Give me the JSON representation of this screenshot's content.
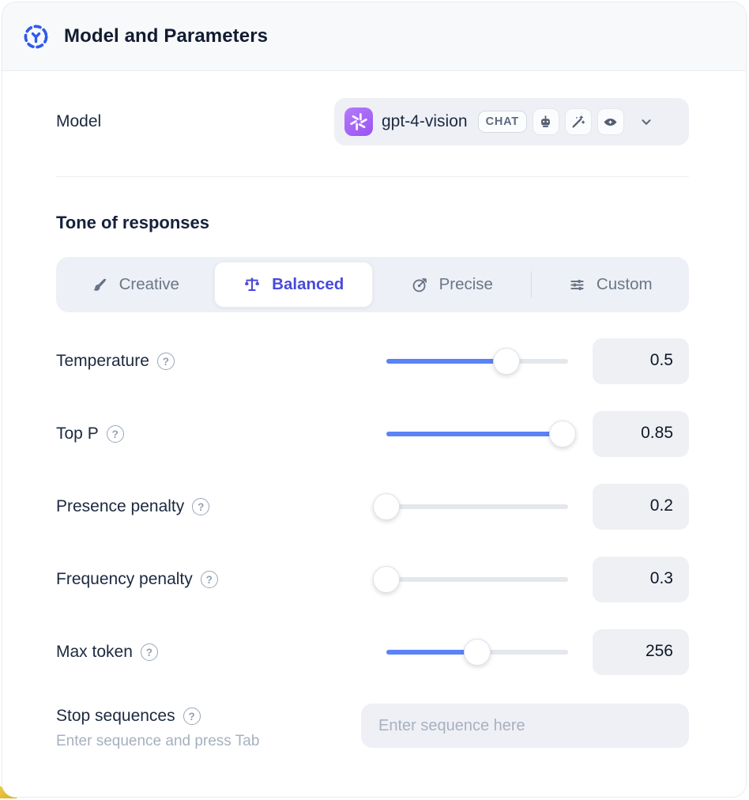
{
  "header": {
    "title": "Model and Parameters",
    "icon": "model-hub-icon"
  },
  "model_row": {
    "label": "Model",
    "selected_model": "gpt-4-vision",
    "provider_icon": "openai-logo",
    "type_badge": "CHAT",
    "capability_badges": [
      "assistant-robot-icon",
      "magic-wand-icon",
      "vision-eye-icon"
    ],
    "dropdown_icon": "chevron-down-icon"
  },
  "tone": {
    "heading": "Tone of responses",
    "tabs": [
      {
        "label": "Creative",
        "icon": "paintbrush-icon",
        "active": false
      },
      {
        "label": "Balanced",
        "icon": "balance-scale-icon",
        "active": true
      },
      {
        "label": "Precise",
        "icon": "target-arrow-icon",
        "active": false
      },
      {
        "label": "Custom",
        "icon": "adjustments-icon",
        "active": false
      }
    ]
  },
  "parameters": [
    {
      "label": "Temperature",
      "value": "0.5",
      "slider_percent": 66
    },
    {
      "label": "Top P",
      "value": "0.85",
      "slider_percent": 97
    },
    {
      "label": "Presence penalty",
      "value": "0.2",
      "slider_percent": 0
    },
    {
      "label": "Frequency penalty",
      "value": "0.3",
      "slider_percent": 0
    },
    {
      "label": "Max token",
      "value": "256",
      "slider_percent": 50
    }
  ],
  "stop_sequences": {
    "label": "Stop sequences",
    "hint": "Enter sequence and press Tab",
    "placeholder": "Enter sequence here",
    "value": ""
  },
  "ui": {
    "help_glyph": "?"
  },
  "colors": {
    "accent_blue": "#5b82f7",
    "active_tab_indigo": "#4749dd",
    "header_icon_blue": "#2d5ceb",
    "openai_purple": "#9a53f3",
    "corner_accent_yellow": "#d9a91c"
  }
}
